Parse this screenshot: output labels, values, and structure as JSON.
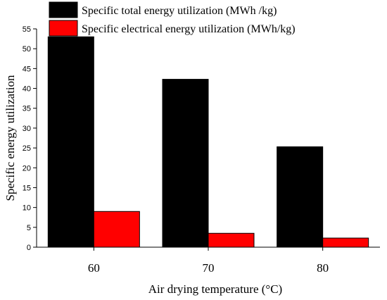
{
  "chart_data": {
    "type": "bar",
    "categories": [
      "60",
      "70",
      "80"
    ],
    "series": [
      {
        "name": "Specific total energy utilization (MWh /kg)",
        "values": [
          53.0,
          42.3,
          25.3
        ],
        "color": "#000000"
      },
      {
        "name": "Specific electrical energy utilization (MWh/kg)",
        "values": [
          9.0,
          3.5,
          2.3
        ],
        "color": "#ff0000"
      }
    ],
    "xlabel": "Air drying temperature (°C)",
    "ylabel": "Specific energy utilization",
    "ylim": [
      0,
      55
    ],
    "yticks": [
      0,
      5,
      10,
      15,
      20,
      25,
      30,
      35,
      40,
      45,
      50,
      55
    ],
    "grid": false,
    "legend_position": "top-left"
  }
}
